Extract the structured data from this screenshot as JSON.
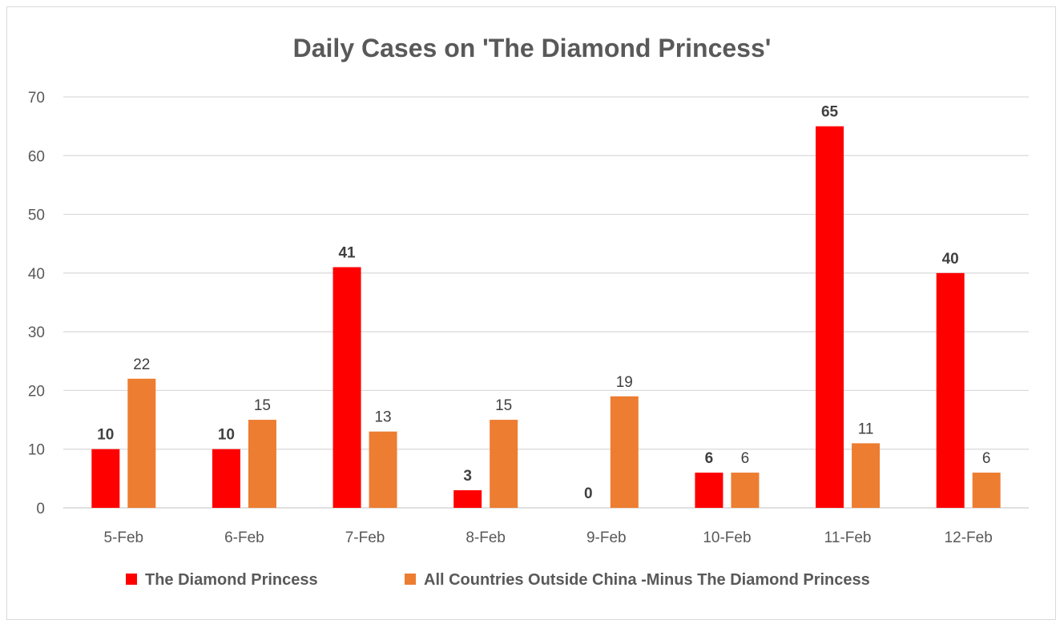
{
  "chart_data": {
    "type": "bar",
    "title": "Daily Cases on 'The Diamond Princess'",
    "xlabel": "",
    "ylabel": "",
    "categories": [
      "5-Feb",
      "6-Feb",
      "7-Feb",
      "8-Feb",
      "9-Feb",
      "10-Feb",
      "11-Feb",
      "12-Feb"
    ],
    "series": [
      {
        "name": "The Diamond Princess",
        "values": [
          10,
          10,
          41,
          3,
          0,
          6,
          65,
          40
        ],
        "color": "#ff0000",
        "label_style": "bold"
      },
      {
        "name": "All Countries Outside China -Minus The Diamond Princess",
        "values": [
          22,
          15,
          13,
          15,
          19,
          6,
          11,
          6
        ],
        "color": "#ed7d31",
        "label_style": "normal"
      }
    ],
    "ylim": [
      0,
      70
    ],
    "yticks": [
      0,
      10,
      20,
      30,
      40,
      50,
      60,
      70
    ],
    "grid": true,
    "legend_position": "bottom",
    "data_labels": true
  }
}
